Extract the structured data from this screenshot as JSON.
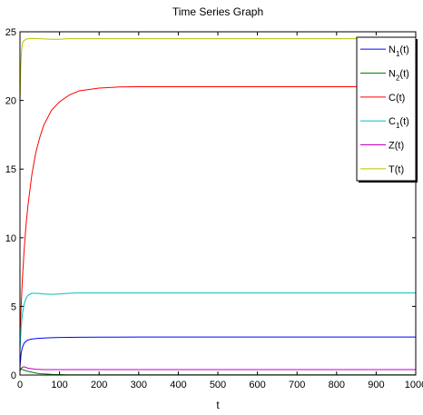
{
  "chart_data": {
    "type": "line",
    "title": "Time Series Graph",
    "xlabel": "t",
    "ylabel": "",
    "xlim": [
      0,
      1000
    ],
    "ylim": [
      0,
      25
    ],
    "xticks": [
      0,
      100,
      200,
      300,
      400,
      500,
      600,
      700,
      800,
      900,
      1000
    ],
    "yticks": [
      0,
      5,
      10,
      15,
      20,
      25
    ],
    "grid": false,
    "legend_position": "top-right",
    "series": [
      {
        "name": "N1(t)",
        "label_main": "N",
        "label_sub": "1",
        "label_tail": "(t)",
        "color": "#0000ff",
        "x": [
          0,
          3,
          6,
          10,
          15,
          20,
          30,
          45,
          60,
          80,
          100,
          150,
          200,
          300,
          500,
          1000
        ],
        "y": [
          0.6,
          1.6,
          2.0,
          2.3,
          2.45,
          2.55,
          2.62,
          2.67,
          2.7,
          2.72,
          2.74,
          2.75,
          2.76,
          2.77,
          2.77,
          2.77
        ]
      },
      {
        "name": "N2(t)",
        "label_main": "N",
        "label_sub": "2",
        "label_tail": "(t)",
        "color": "#008000",
        "x": [
          0,
          5,
          10,
          20,
          35,
          50,
          80,
          120,
          200,
          1000
        ],
        "y": [
          0.5,
          0.42,
          0.36,
          0.27,
          0.17,
          0.1,
          0.05,
          0.02,
          0.01,
          0.01
        ]
      },
      {
        "name": "C(t)",
        "label_main": "C(t)",
        "label_sub": "",
        "label_tail": "",
        "color": "#ff0000",
        "x": [
          0,
          3,
          6,
          10,
          15,
          20,
          30,
          40,
          50,
          60,
          80,
          100,
          125,
          150,
          200,
          250,
          300,
          400,
          500,
          1000
        ],
        "y": [
          2.8,
          5.0,
          6.9,
          8.9,
          10.8,
          12.3,
          14.6,
          16.2,
          17.3,
          18.2,
          19.3,
          19.9,
          20.4,
          20.7,
          20.9,
          20.98,
          21.0,
          21.0,
          21.0,
          21.0
        ]
      },
      {
        "name": "C1(t)",
        "label_main": "C",
        "label_sub": "1",
        "label_tail": "(t)",
        "color": "#00bfbf",
        "x": [
          0,
          3,
          6,
          10,
          15,
          20,
          30,
          45,
          60,
          80,
          100,
          120,
          150,
          200,
          1000
        ],
        "y": [
          1.8,
          3.5,
          4.4,
          5.1,
          5.55,
          5.8,
          5.95,
          5.95,
          5.9,
          5.88,
          5.9,
          5.95,
          5.98,
          5.98,
          5.98
        ]
      },
      {
        "name": "Z(t)",
        "label_main": "Z(t)",
        "label_sub": "",
        "label_tail": "",
        "color": "#bf00bf",
        "x": [
          0,
          5,
          10,
          20,
          40,
          60,
          100,
          1000
        ],
        "y": [
          0.3,
          0.55,
          0.6,
          0.5,
          0.42,
          0.4,
          0.4,
          0.4
        ]
      },
      {
        "name": "T(t)",
        "label_main": "T(t)",
        "label_sub": "",
        "label_tail": "",
        "color": "#bfbf00",
        "x": [
          0,
          2,
          4,
          6,
          8,
          10,
          15,
          20,
          30,
          50,
          80,
          100,
          120,
          150,
          1000
        ],
        "y": [
          19.8,
          22.5,
          23.6,
          24.1,
          24.3,
          24.35,
          24.45,
          24.5,
          24.52,
          24.5,
          24.45,
          24.45,
          24.5,
          24.5,
          24.5
        ]
      }
    ]
  }
}
